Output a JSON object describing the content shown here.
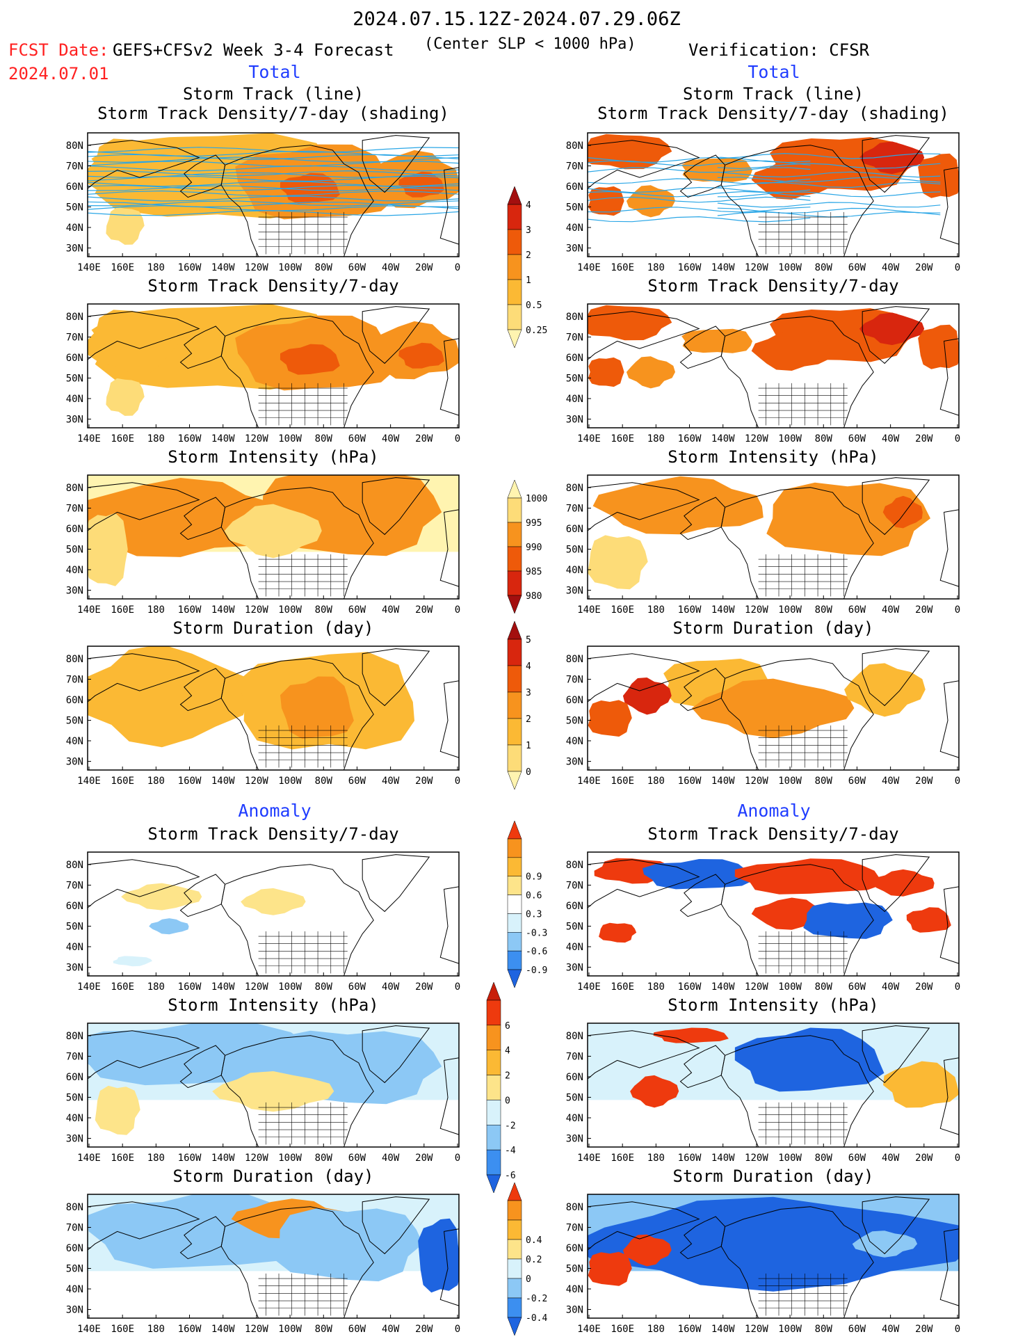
{
  "header": {
    "title": "2024.07.15.12Z-2024.07.29.06Z",
    "fcst_label": "FCST Date:",
    "fcst_date": "2024.07.01",
    "model": "GEFS+CFSv2 Week 3-4 Forecast",
    "criterion": "(Center SLP < 1000 hPa)",
    "verification": "Verification: CFSR"
  },
  "sections": {
    "total": "Total",
    "anomaly": "Anomaly"
  },
  "colors": {
    "section_label": "#1f3cff",
    "fcst_label": "#ff2020",
    "track_line": "#2aa6e6",
    "land_outline": "#000000"
  },
  "chart_data": [
    {
      "type": "heatmap",
      "column": "forecast",
      "section": "Total",
      "title": "Storm Track (line)",
      "subtitle": "Storm Track Density/7-day (shading)",
      "overlay": "storm track lines",
      "colorbar": "density"
    },
    {
      "type": "heatmap",
      "column": "verification",
      "section": "Total",
      "title": "Storm Track (line)",
      "subtitle": "Storm Track Density/7-day (shading)",
      "overlay": "storm track lines",
      "colorbar": "density"
    },
    {
      "type": "heatmap",
      "column": "forecast",
      "section": "Total",
      "title": "Storm Track Density/7-day",
      "colorbar": "density"
    },
    {
      "type": "heatmap",
      "column": "verification",
      "section": "Total",
      "title": "Storm Track Density/7-day",
      "colorbar": "density"
    },
    {
      "type": "heatmap",
      "column": "forecast",
      "section": "Total",
      "title": "Storm Intensity (hPa)",
      "colorbar": "intensity"
    },
    {
      "type": "heatmap",
      "column": "verification",
      "section": "Total",
      "title": "Storm Intensity (hPa)",
      "colorbar": "intensity"
    },
    {
      "type": "heatmap",
      "column": "forecast",
      "section": "Total",
      "title": "Storm Duration (day)",
      "colorbar": "duration"
    },
    {
      "type": "heatmap",
      "column": "verification",
      "section": "Total",
      "title": "Storm Duration (day)",
      "colorbar": "duration"
    },
    {
      "type": "heatmap",
      "column": "forecast",
      "section": "Anomaly",
      "title": "Storm Track Density/7-day",
      "colorbar": "density_anom"
    },
    {
      "type": "heatmap",
      "column": "verification",
      "section": "Anomaly",
      "title": "Storm Track Density/7-day",
      "colorbar": "density_anom"
    },
    {
      "type": "heatmap",
      "column": "forecast",
      "section": "Anomaly",
      "title": "Storm Intensity (hPa)",
      "colorbar": "intensity_anom"
    },
    {
      "type": "heatmap",
      "column": "verification",
      "section": "Anomaly",
      "title": "Storm Intensity (hPa)",
      "colorbar": "intensity_anom"
    },
    {
      "type": "heatmap",
      "column": "forecast",
      "section": "Anomaly",
      "title": "Storm Duration (day)",
      "colorbar": "duration_anom"
    },
    {
      "type": "heatmap",
      "column": "verification",
      "section": "Anomaly",
      "title": "Storm Duration (day)",
      "colorbar": "duration_anom"
    }
  ],
  "axes": {
    "x_ticks": [
      "140E",
      "160E",
      "180",
      "160W",
      "140W",
      "120W",
      "100W",
      "80W",
      "60W",
      "40W",
      "20W",
      "0"
    ],
    "y_ticks": [
      "80N",
      "70N",
      "60N",
      "50N",
      "40N",
      "30N"
    ]
  },
  "colorbars": {
    "density": {
      "labels": [
        "0.25",
        "0.5",
        "1",
        "2",
        "3",
        "4"
      ],
      "colors": [
        "#fff4b0",
        "#fddc78",
        "#fbb934",
        "#f7931e",
        "#ee5a0a",
        "#d8260e",
        "#a30f0f"
      ]
    },
    "intensity": {
      "labels": [
        "1000",
        "995",
        "990",
        "985",
        "980"
      ],
      "colors": [
        "#fff4b0",
        "#fddc78",
        "#f7931e",
        "#ee5a0a",
        "#d8260e",
        "#a30f0f"
      ],
      "reversed": true
    },
    "duration": {
      "labels": [
        "0",
        "1",
        "2",
        "3",
        "4",
        "5"
      ],
      "colors": [
        "#fff4b0",
        "#fddc78",
        "#fbb934",
        "#f7931e",
        "#ee5a0a",
        "#d8260e",
        "#a30f0f"
      ]
    },
    "density_anom": {
      "labels": [
        "-0.9",
        "-0.6",
        "-0.3",
        "0.3",
        "0.6",
        "0.9"
      ],
      "colors": [
        "#1e64e0",
        "#3c8ff0",
        "#8cc8f5",
        "#d8f2fb",
        "#ffffff",
        "#fde48a",
        "#fbb934",
        "#f7931e",
        "#ee3a0e"
      ]
    },
    "intensity_anom": {
      "labels": [
        "-6",
        "-4",
        "-2",
        "0",
        "2",
        "4",
        "6"
      ],
      "colors": [
        "#1e64e0",
        "#3c8ff0",
        "#8cc8f5",
        "#d8f2fb",
        "#fde48a",
        "#fbb934",
        "#f7931e",
        "#ee3a0e",
        "#c81e0a"
      ]
    },
    "duration_anom": {
      "labels": [
        "-0.4",
        "-0.2",
        "0",
        "0.2",
        "0.4"
      ],
      "colors": [
        "#1e64e0",
        "#3c8ff0",
        "#8cc8f5",
        "#d8f2fb",
        "#fde48a",
        "#fbb934",
        "#f7931e",
        "#ee3a0e"
      ]
    }
  }
}
